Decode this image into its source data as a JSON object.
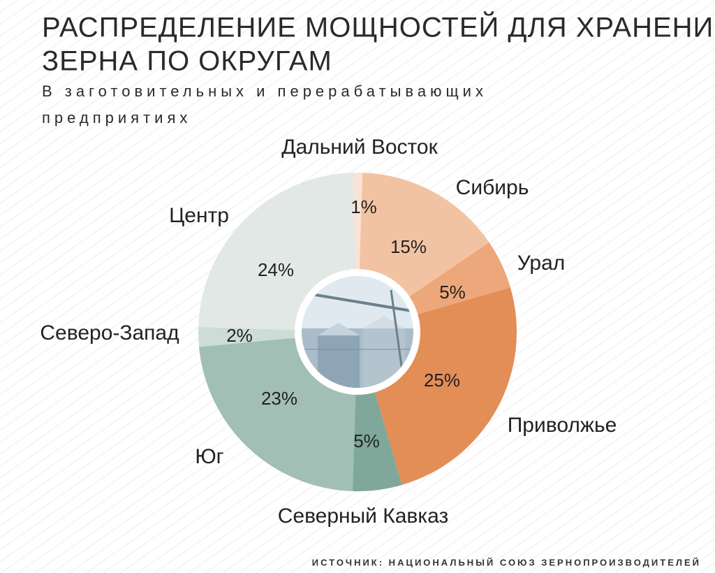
{
  "chart_data": {
    "type": "donut",
    "title_lines": [
      "РАСПРЕДЕЛЕНИЕ  МОЩНОСТЕЙ ДЛЯ ХРАНЕНИЯ",
      "ЗЕРНА ПО ОКРУГАМ"
    ],
    "subtitle_lines": [
      "В заготовительных и перерабатывающих",
      "предприятиях"
    ],
    "categories": [
      "Дальний Восток",
      "Сибирь",
      "Урал",
      "Приволжье",
      "Северный Кавказ",
      "Юг",
      "Северо-Запад",
      "Центр"
    ],
    "values": [
      1,
      15,
      5,
      25,
      5,
      23,
      2,
      24
    ],
    "value_labels": [
      "1%",
      "15%",
      "5%",
      "25%",
      "5%",
      "23%",
      "2%",
      "24%"
    ],
    "colors": [
      "#f9e3d6",
      "#f2c3a2",
      "#eca77a",
      "#e38d57",
      "#7fa89a",
      "#a2bfb6",
      "#cddcd6",
      "#e1e8e5"
    ],
    "source": "ИСТОЧНИК: НАЦИОНАЛЬНЫЙ СОЮЗ ЗЕРНОПРОИЗВОДИТЕЛЕЙ"
  }
}
